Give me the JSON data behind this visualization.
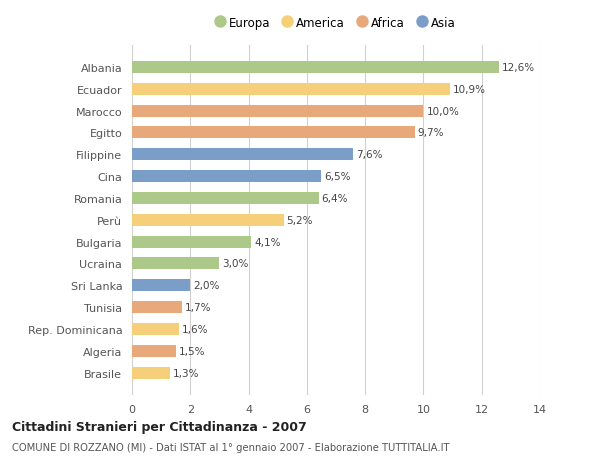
{
  "categories": [
    "Albania",
    "Ecuador",
    "Marocco",
    "Egitto",
    "Filippine",
    "Cina",
    "Romania",
    "Perù",
    "Bulgaria",
    "Ucraina",
    "Sri Lanka",
    "Tunisia",
    "Rep. Dominicana",
    "Algeria",
    "Brasile"
  ],
  "values": [
    12.6,
    10.9,
    10.0,
    9.7,
    7.6,
    6.5,
    6.4,
    5.2,
    4.1,
    3.0,
    2.0,
    1.7,
    1.6,
    1.5,
    1.3
  ],
  "labels": [
    "12,6%",
    "10,9%",
    "10,0%",
    "9,7%",
    "7,6%",
    "6,5%",
    "6,4%",
    "5,2%",
    "4,1%",
    "3,0%",
    "2,0%",
    "1,7%",
    "1,6%",
    "1,5%",
    "1,3%"
  ],
  "continents": [
    "Europa",
    "America",
    "Africa",
    "Africa",
    "Asia",
    "Asia",
    "Europa",
    "America",
    "Europa",
    "Europa",
    "Asia",
    "Africa",
    "America",
    "Africa",
    "America"
  ],
  "continent_colors": {
    "Europa": "#adc98a",
    "America": "#f5cf7a",
    "Africa": "#e8a97a",
    "Asia": "#7b9ec9"
  },
  "legend_order": [
    "Europa",
    "America",
    "Africa",
    "Asia"
  ],
  "xlim": [
    0,
    14
  ],
  "xticks": [
    0,
    2,
    4,
    6,
    8,
    10,
    12,
    14
  ],
  "title": "Cittadini Stranieri per Cittadinanza - 2007",
  "subtitle": "COMUNE DI ROZZANO (MI) - Dati ISTAT al 1° gennaio 2007 - Elaborazione TUTTITALIA.IT",
  "bg_color": "#ffffff",
  "grid_color": "#d0d0d0"
}
